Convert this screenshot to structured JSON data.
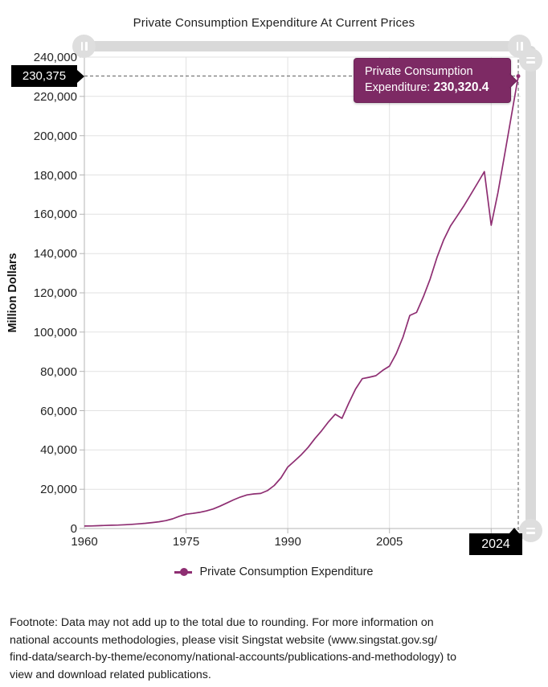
{
  "title": "Private Consumption Expenditure At Current Prices",
  "y_axis": {
    "title": "Million Dollars",
    "tick_labels": [
      "240,000",
      "220,000",
      "200,000",
      "180,000",
      "160,000",
      "140,000",
      "120,000",
      "100,000",
      "80,000",
      "60,000",
      "40,000",
      "20,000",
      "0"
    ]
  },
  "x_axis": {
    "tick_labels": [
      "1960",
      "1975",
      "1990",
      "2005"
    ],
    "tick_years": [
      1960,
      1975,
      1990,
      2005
    ],
    "end_label": "2024"
  },
  "sliders": {
    "y_value_callout": "230,375",
    "x_value_callout": "2024"
  },
  "tooltip": {
    "label": "Private Consumption Expenditure:",
    "value": "230,320.4"
  },
  "legend": {
    "items": [
      {
        "label": "Private Consumption Expenditure",
        "color": "#8e2e72"
      }
    ]
  },
  "footnote_lines": [
    "Footnote: Data may not add up to the total due to rounding. For more information on",
    "national accounts methodologies, please visit Singstat website (www.singstat.gov.sg/",
    "find-data/search-by-theme/economy/national-accounts/publications-and-methodology) to",
    "view and download related publications."
  ],
  "colors": {
    "series": "#8e2e72",
    "tooltip_bg": "#7d2a64",
    "callout_bg": "#000000",
    "slider_track": "#d9d9d9",
    "slider_handle": "#dedede",
    "grid": "#e2e2e2",
    "axis": "#b5b5b5",
    "crosshair": "#787878"
  },
  "chart_data": {
    "type": "line",
    "title": "Private Consumption Expenditure At Current Prices",
    "xlabel": "",
    "ylabel": "Million Dollars",
    "xlim": [
      1960,
      2024
    ],
    "ylim": [
      0,
      240000
    ],
    "y_tick_step": 20000,
    "x_gridlines": [
      1975,
      1990,
      2005,
      2020
    ],
    "grid": true,
    "legend_position": "bottom",
    "cursor": {
      "year": 2024,
      "value": 230320.4,
      "slider_value": 230375
    },
    "series": [
      {
        "name": "Private Consumption Expenditure",
        "x": [
          1960,
          1961,
          1962,
          1963,
          1964,
          1965,
          1966,
          1967,
          1968,
          1969,
          1970,
          1971,
          1972,
          1973,
          1974,
          1975,
          1976,
          1977,
          1978,
          1979,
          1980,
          1981,
          1982,
          1983,
          1984,
          1985,
          1986,
          1987,
          1988,
          1989,
          1990,
          1991,
          1992,
          1993,
          1994,
          1995,
          1996,
          1997,
          1998,
          1999,
          2000,
          2001,
          2002,
          2003,
          2004,
          2005,
          2006,
          2007,
          2008,
          2009,
          2010,
          2011,
          2012,
          2013,
          2014,
          2015,
          2016,
          2017,
          2018,
          2019,
          2020,
          2021,
          2022,
          2023,
          2024
        ],
        "values": [
          1250,
          1330,
          1420,
          1560,
          1660,
          1780,
          1930,
          2120,
          2360,
          2660,
          3020,
          3460,
          4010,
          4920,
          6230,
          7300,
          7720,
          8230,
          8950,
          9950,
          11400,
          13000,
          14600,
          16000,
          17100,
          17600,
          17850,
          19300,
          21900,
          25800,
          31300,
          34400,
          37600,
          41300,
          45800,
          49800,
          54300,
          58200,
          56100,
          63900,
          71000,
          76300,
          77000,
          77800,
          80500,
          82700,
          89000,
          97500,
          108500,
          110000,
          118000,
          127000,
          138000,
          147000,
          154000,
          159200,
          164400,
          170100,
          175900,
          181700,
          154400,
          171000,
          190500,
          210500,
          230320.4
        ]
      }
    ]
  }
}
